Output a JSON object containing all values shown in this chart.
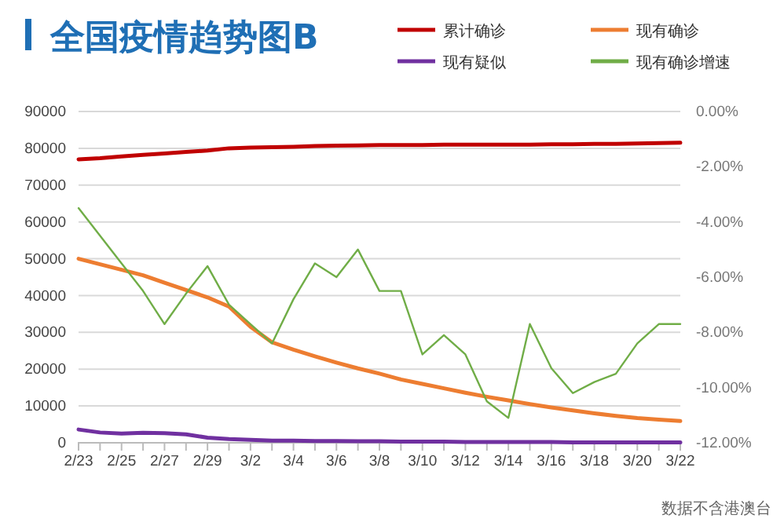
{
  "chart_data": {
    "type": "line",
    "title": "全国疫情趋势图B",
    "categories": [
      "2/23",
      null,
      "2/25",
      null,
      "2/27",
      null,
      "2/29",
      null,
      "3/2",
      null,
      "3/4",
      null,
      "3/6",
      null,
      "3/8",
      null,
      "3/10",
      null,
      "3/12",
      null,
      "3/14",
      null,
      "3/16",
      null,
      "3/18",
      null,
      "3/20",
      null,
      "3/22"
    ],
    "series": [
      {
        "name": "累计确诊",
        "color": "#c00000",
        "values": [
          77000,
          77300,
          77800,
          78200,
          78600,
          79000,
          79400,
          80000,
          80200,
          80300,
          80400,
          80600,
          80700,
          80800,
          80900,
          80900,
          80900,
          81000,
          81000,
          81000,
          81000,
          81000,
          81100,
          81100,
          81200,
          81200,
          81300,
          81400,
          81500
        ]
      },
      {
        "name": "现有确诊",
        "color": "#ed7d31",
        "values": [
          50000,
          48500,
          47000,
          45500,
          43500,
          41500,
          39500,
          37000,
          31500,
          27300,
          25300,
          23500,
          21800,
          20200,
          18800,
          17200,
          16000,
          14800,
          13600,
          12500,
          11500,
          10500,
          9600,
          8800,
          8000,
          7300,
          6700,
          6300,
          5900
        ]
      },
      {
        "name": "现有疑似",
        "color": "#7030a0",
        "values": [
          3600,
          2800,
          2500,
          2700,
          2600,
          2300,
          1400,
          1000,
          800,
          600,
          600,
          500,
          500,
          400,
          400,
          300,
          300,
          300,
          200,
          200,
          200,
          200,
          200,
          100,
          100,
          100,
          100,
          100,
          100
        ]
      },
      {
        "name": "现有确诊增速",
        "color": "#70ad47",
        "axis": "y2",
        "values": [
          -3.5,
          -4.5,
          -5.5,
          -6.5,
          -7.7,
          -6.6,
          -5.6,
          -7.0,
          -7.7,
          -8.4,
          -6.8,
          -5.5,
          -6.0,
          -5.0,
          -6.5,
          -6.5,
          -8.8,
          -8.1,
          -8.8,
          -10.5,
          -11.1,
          -7.7,
          -9.3,
          -10.2,
          -9.8,
          -9.5,
          -8.4,
          -7.7,
          -7.7
        ]
      }
    ],
    "ylim": [
      0,
      90000
    ],
    "yticks": [
      0,
      10000,
      20000,
      30000,
      40000,
      50000,
      60000,
      70000,
      80000,
      90000
    ],
    "y2lim": [
      -12,
      0
    ],
    "y2ticks": [
      {
        "value": 0,
        "label": "0.00%"
      },
      {
        "value": -2,
        "label": "-2.00%"
      },
      {
        "value": -4,
        "label": "-4.00%"
      },
      {
        "value": -6,
        "label": "-6.00%"
      },
      {
        "value": -8,
        "label": "-8.00%"
      },
      {
        "value": -10,
        "label": "-10.00%"
      },
      {
        "value": -12,
        "label": "-12.00%"
      }
    ],
    "grid": "y",
    "legend": "top right",
    "annotations": [
      "数据不含港澳台"
    ]
  }
}
